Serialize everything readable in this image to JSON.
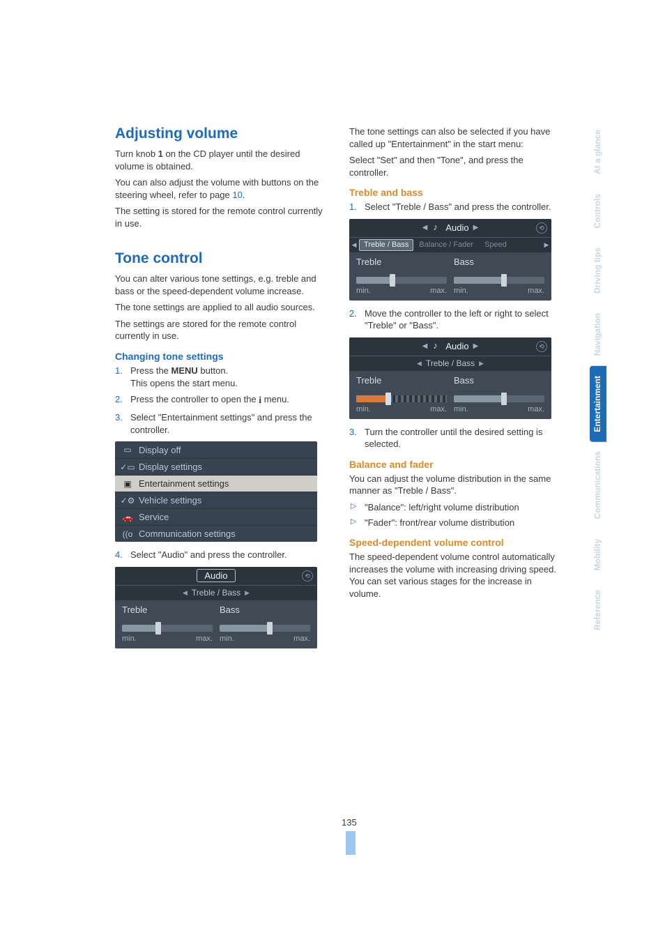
{
  "left": {
    "adjusting_volume": {
      "heading": "Adjusting volume",
      "p1_a": "Turn knob ",
      "p1_bold": "1",
      "p1_b": " on the CD player until the desired volume is obtained.",
      "p2_a": "You can also adjust the volume with buttons on the steering wheel, refer to page ",
      "p2_link": "10",
      "p2_b": ".",
      "p3": "The setting is stored for the remote control currently in use."
    },
    "tone_control": {
      "heading": "Tone control",
      "p1": "You can alter various tone settings, e.g. treble and bass or the speed-dependent volume increase.",
      "p2": "The tone settings are applied to all audio sources.",
      "p3": "The settings are stored for the remote control currently in use."
    },
    "changing": {
      "heading": "Changing tone settings",
      "step1_a": "Press the ",
      "step1_bold": "MENU",
      "step1_b": " button.",
      "step1_line2": "This opens the start menu.",
      "step2_a": "Press the controller to open the ",
      "step2_b": " menu.",
      "step3": "Select \"Entertainment settings\" and press the controller.",
      "step4": "Select \"Audio\" and press the controller."
    },
    "menu_fig": {
      "items": [
        {
          "icon": "▭",
          "label": "Display off"
        },
        {
          "icon": "✓▭",
          "label": "Display settings"
        },
        {
          "icon": "▣",
          "label": "Entertainment settings",
          "selected": true
        },
        {
          "icon": "✓⚙",
          "label": "Vehicle settings"
        },
        {
          "icon": "🚗",
          "label": "Service"
        },
        {
          "icon": "((o",
          "label": "Communication settings"
        }
      ]
    },
    "audio_fig": {
      "header_label": "Audio",
      "sub_label": "Treble / Bass",
      "treble_label": "Treble",
      "bass_label": "Bass",
      "min": "min.",
      "max": "max.",
      "treble": {
        "fill_pct": 40,
        "thumb_pct": 40,
        "track_bg": "#5a6773",
        "fill_bg": "#8997a3"
      },
      "bass": {
        "fill_pct": 55,
        "thumb_pct": 55,
        "track_bg": "#5a6773",
        "fill_bg": "#8997a3"
      }
    }
  },
  "right": {
    "intro": {
      "p1": "The tone settings can also be selected if you have called up \"Entertainment\" in the start menu:",
      "p2": "Select \"Set\" and then \"Tone\", and press the controller."
    },
    "treble_bass": {
      "heading": "Treble and bass",
      "step1": "Select \"Treble / Bass\" and press the controller.",
      "step2": "Move the controller to the left or right to select \"Treble\" or \"Bass\".",
      "step3": "Turn the controller until the desired setting is selected."
    },
    "fig1": {
      "header_label": "Audio",
      "tabs": [
        "Treble / Bass",
        "Balance / Fader",
        "Speed"
      ],
      "sel_index": 0,
      "treble_label": "Treble",
      "bass_label": "Bass",
      "min": "min.",
      "max": "max.",
      "treble": {
        "fill_pct": 40,
        "thumb_pct": 40,
        "track_bg": "#5a6773",
        "fill_bg": "#8997a3"
      },
      "bass": {
        "fill_pct": 55,
        "thumb_pct": 55,
        "track_bg": "#5a6773",
        "fill_bg": "#8997a3"
      }
    },
    "fig2": {
      "header_label": "Audio",
      "sub_label": "Treble / Bass",
      "treble_label": "Treble",
      "bass_label": "Bass",
      "min": "min.",
      "max": "max.",
      "treble": {
        "fill_pct": 35,
        "thumb_pct": 35,
        "track_bg": "#2b343c",
        "show_ticks": true,
        "fill_bg": "#d77a3a",
        "thumb_color": "#cfe0ee"
      },
      "bass": {
        "fill_pct": 55,
        "thumb_pct": 55,
        "track_bg": "#5a6773",
        "fill_bg": "#8997a3"
      }
    },
    "balance": {
      "heading": "Balance and fader",
      "p1": "You can adjust the volume distribution in the same manner as \"Treble / Bass\".",
      "li1": "\"Balance\": left/right volume distribution",
      "li2": "\"Fader\": front/rear volume distribution"
    },
    "speed": {
      "heading": "Speed-dependent volume control",
      "p1": "The speed-dependent volume control automatically increases the volume with increasing driving speed. You can set various stages for the increase in volume."
    }
  },
  "sidetabs": [
    {
      "label": "Reference",
      "color": "#c8d5e2",
      "bg": "#ffffff"
    },
    {
      "label": "Mobility",
      "color": "#c8d5e2",
      "bg": "#ffffff"
    },
    {
      "label": "Communications",
      "color": "#c8d5e2",
      "bg": "#ffffff"
    },
    {
      "label": "Entertainment",
      "color": "#ffffff",
      "bg": "#1e6bb8"
    },
    {
      "label": "Navigation",
      "color": "#c8d5e2",
      "bg": "#ffffff"
    },
    {
      "label": "Driving tips",
      "color": "#c8d5e2",
      "bg": "#ffffff"
    },
    {
      "label": "Controls",
      "color": "#c8d5e2",
      "bg": "#ffffff"
    },
    {
      "label": "At a glance",
      "color": "#c8d5e2",
      "bg": "#ffffff"
    }
  ],
  "page_number": "135"
}
